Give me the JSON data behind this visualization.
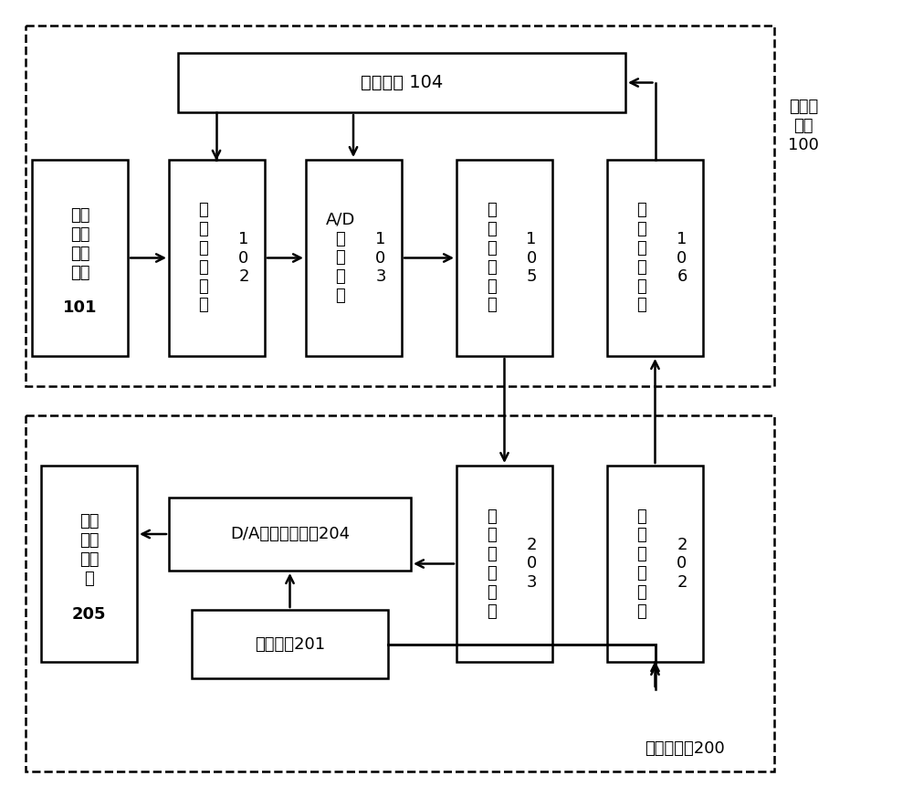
{
  "fig_width": 10.0,
  "fig_height": 8.73,
  "bg_color": "#ffffff",
  "high_label": "高压侧\n系统\n100",
  "low_label": "低压侧系统200",
  "ctrl104_text": "控制单元 104",
  "volt101_main": "电压\n信号\n采集\n模块",
  "volt101_num": "101",
  "sig102_main": "信\n号\n调\n理\n电\n路",
  "sig102_num": "1\n0\n2",
  "ad103_main": "A/D\n转\n换\n模\n块",
  "ad103_num": "1\n0\n3",
  "send105_main": "信\n号\n发\n送\n模\n块",
  "send105_num": "1\n0\n5",
  "recv106_main": "信\n号\n接\n受\n模\n块",
  "recv106_num": "1\n0\n6",
  "disp205_main": "显示\n与存\n储设\n备",
  "disp205_num": "205",
  "da204_text": "D/A模拟输出电路204",
  "ctrl201_text": "控制单元201",
  "recv203_main": "信\n号\n接\n受\n模\n块",
  "recv203_num": "2\n0\n3",
  "send202_main": "信\n号\n发\n送\n模\n块",
  "send202_num": "2\n0\n2"
}
